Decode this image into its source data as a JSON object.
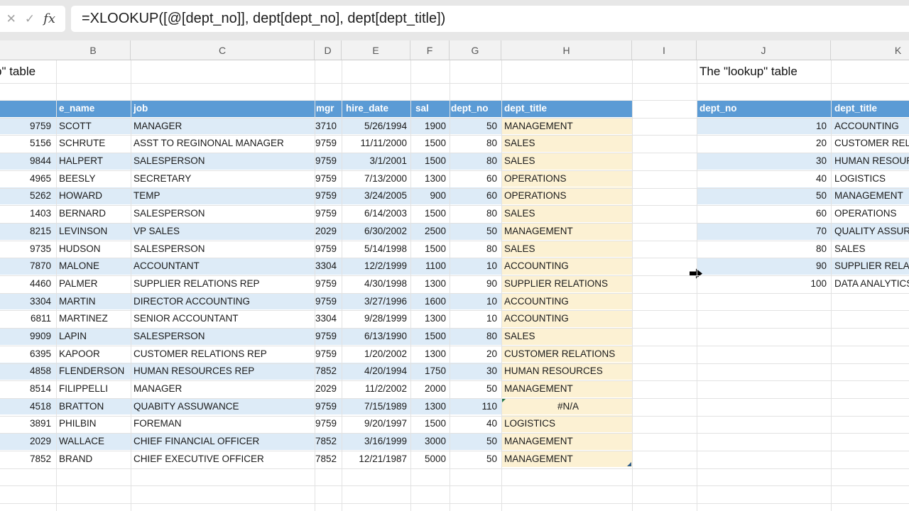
{
  "formula_bar": {
    "formula": "=XLOOKUP([@[dept_no]], dept[dept_no], dept[dept_title])",
    "cancel_icon": "✕",
    "enter_icon": "✓",
    "fx_icon": "fx"
  },
  "column_letters": [
    "B",
    "C",
    "D",
    "E",
    "F",
    "G",
    "H",
    "I",
    "J",
    "K"
  ],
  "titles": {
    "emp_table_fragment": "p\" table",
    "lookup_table": "The \"lookup\" table"
  },
  "emp_table": {
    "headers": {
      "emp_no": "",
      "e_name": "e_name",
      "job": "job",
      "mgr": "mgr",
      "hire_date": "hire_date",
      "sal": "sal",
      "dept_no": "dept_no",
      "dept_title": "dept_title"
    },
    "rows": [
      {
        "emp_no": "9759",
        "e_name": "SCOTT",
        "job": "MANAGER",
        "mgr": "3710",
        "hire_date": "5/26/1994",
        "sal": "1900",
        "dept_no": "50",
        "dept_title": "MANAGEMENT"
      },
      {
        "emp_no": "5156",
        "e_name": "SCHRUTE",
        "job": "ASST TO REGINONAL MANAGER",
        "mgr": "9759",
        "hire_date": "11/11/2000",
        "sal": "1500",
        "dept_no": "80",
        "dept_title": "SALES"
      },
      {
        "emp_no": "9844",
        "e_name": "HALPERT",
        "job": "SALESPERSON",
        "mgr": "9759",
        "hire_date": "3/1/2001",
        "sal": "1500",
        "dept_no": "80",
        "dept_title": "SALES"
      },
      {
        "emp_no": "4965",
        "e_name": "BEESLY",
        "job": "SECRETARY",
        "mgr": "9759",
        "hire_date": "7/13/2000",
        "sal": "1300",
        "dept_no": "60",
        "dept_title": "OPERATIONS"
      },
      {
        "emp_no": "5262",
        "e_name": "HOWARD",
        "job": "TEMP",
        "mgr": "9759",
        "hire_date": "3/24/2005",
        "sal": "900",
        "dept_no": "60",
        "dept_title": "OPERATIONS"
      },
      {
        "emp_no": "1403",
        "e_name": "BERNARD",
        "job": "SALESPERSON",
        "mgr": "9759",
        "hire_date": "6/14/2003",
        "sal": "1500",
        "dept_no": "80",
        "dept_title": "SALES"
      },
      {
        "emp_no": "8215",
        "e_name": "LEVINSON",
        "job": "VP SALES",
        "mgr": "2029",
        "hire_date": "6/30/2002",
        "sal": "2500",
        "dept_no": "50",
        "dept_title": "MANAGEMENT"
      },
      {
        "emp_no": "9735",
        "e_name": "HUDSON",
        "job": "SALESPERSON",
        "mgr": "9759",
        "hire_date": "5/14/1998",
        "sal": "1500",
        "dept_no": "80",
        "dept_title": "SALES"
      },
      {
        "emp_no": "7870",
        "e_name": "MALONE",
        "job": "ACCOUNTANT",
        "mgr": "3304",
        "hire_date": "12/2/1999",
        "sal": "1100",
        "dept_no": "10",
        "dept_title": "ACCOUNTING"
      },
      {
        "emp_no": "4460",
        "e_name": "PALMER",
        "job": "SUPPLIER RELATIONS REP",
        "mgr": "9759",
        "hire_date": "4/30/1998",
        "sal": "1300",
        "dept_no": "90",
        "dept_title": "SUPPLIER RELATIONS"
      },
      {
        "emp_no": "3304",
        "e_name": "MARTIN",
        "job": "DIRECTOR ACCOUNTING",
        "mgr": "9759",
        "hire_date": "3/27/1996",
        "sal": "1600",
        "dept_no": "10",
        "dept_title": "ACCOUNTING"
      },
      {
        "emp_no": "6811",
        "e_name": "MARTINEZ",
        "job": "SENIOR ACCOUNTANT",
        "mgr": "3304",
        "hire_date": "9/28/1999",
        "sal": "1300",
        "dept_no": "10",
        "dept_title": "ACCOUNTING"
      },
      {
        "emp_no": "9909",
        "e_name": "LAPIN",
        "job": "SALESPERSON",
        "mgr": "9759",
        "hire_date": "6/13/1990",
        "sal": "1500",
        "dept_no": "80",
        "dept_title": "SALES"
      },
      {
        "emp_no": "6395",
        "e_name": "KAPOOR",
        "job": "CUSTOMER RELATIONS REP",
        "mgr": "9759",
        "hire_date": "1/20/2002",
        "sal": "1300",
        "dept_no": "20",
        "dept_title": "CUSTOMER RELATIONS"
      },
      {
        "emp_no": "4858",
        "e_name": "FLENDERSON",
        "job": "HUMAN RESOURCES REP",
        "mgr": "7852",
        "hire_date": "4/20/1994",
        "sal": "1750",
        "dept_no": "30",
        "dept_title": "HUMAN RESOURCES"
      },
      {
        "emp_no": "8514",
        "e_name": "FILIPPELLI",
        "job": "MANAGER",
        "mgr": "2029",
        "hire_date": "11/2/2002",
        "sal": "2000",
        "dept_no": "50",
        "dept_title": "MANAGEMENT"
      },
      {
        "emp_no": "4518",
        "e_name": "BRATTON",
        "job": "QUABITY ASSUWANCE",
        "mgr": "9759",
        "hire_date": "7/15/1989",
        "sal": "1300",
        "dept_no": "110",
        "dept_title": "#N/A",
        "error": true
      },
      {
        "emp_no": "3891",
        "e_name": "PHILBIN",
        "job": "FOREMAN",
        "mgr": "9759",
        "hire_date": "9/20/1997",
        "sal": "1500",
        "dept_no": "40",
        "dept_title": "LOGISTICS"
      },
      {
        "emp_no": "2029",
        "e_name": "WALLACE",
        "job": "CHIEF FINANCIAL OFFICER",
        "mgr": "7852",
        "hire_date": "3/16/1999",
        "sal": "3000",
        "dept_no": "50",
        "dept_title": "MANAGEMENT"
      },
      {
        "emp_no": "7852",
        "e_name": "BRAND",
        "job": "CHIEF EXECUTIVE OFFICER",
        "mgr": "7852",
        "hire_date": "12/21/1987",
        "sal": "5000",
        "dept_no": "50",
        "dept_title": "MANAGEMENT"
      }
    ]
  },
  "lookup_table": {
    "headers": {
      "dept_no": "dept_no",
      "dept_title": "dept_title"
    },
    "rows": [
      {
        "dept_no": "10",
        "dept_title": "ACCOUNTING"
      },
      {
        "dept_no": "20",
        "dept_title": "CUSTOMER RELATIONS"
      },
      {
        "dept_no": "30",
        "dept_title": "HUMAN RESOURCES"
      },
      {
        "dept_no": "40",
        "dept_title": "LOGISTICS"
      },
      {
        "dept_no": "50",
        "dept_title": "MANAGEMENT"
      },
      {
        "dept_no": "60",
        "dept_title": "OPERATIONS"
      },
      {
        "dept_no": "70",
        "dept_title": "QUALITY ASSURANCE"
      },
      {
        "dept_no": "80",
        "dept_title": "SALES"
      },
      {
        "dept_no": "90",
        "dept_title": "SUPPLIER RELATIONS"
      },
      {
        "dept_no": "100",
        "dept_title": "DATA ANALYTICS"
      }
    ]
  },
  "colors": {
    "table_header_blue": "#5b9bd5",
    "band_blue": "#ddebf7",
    "highlight_gold": "#fcf1d3",
    "error_triangle_green": "#217346",
    "resize_handle_blue": "#2e5c8a"
  }
}
